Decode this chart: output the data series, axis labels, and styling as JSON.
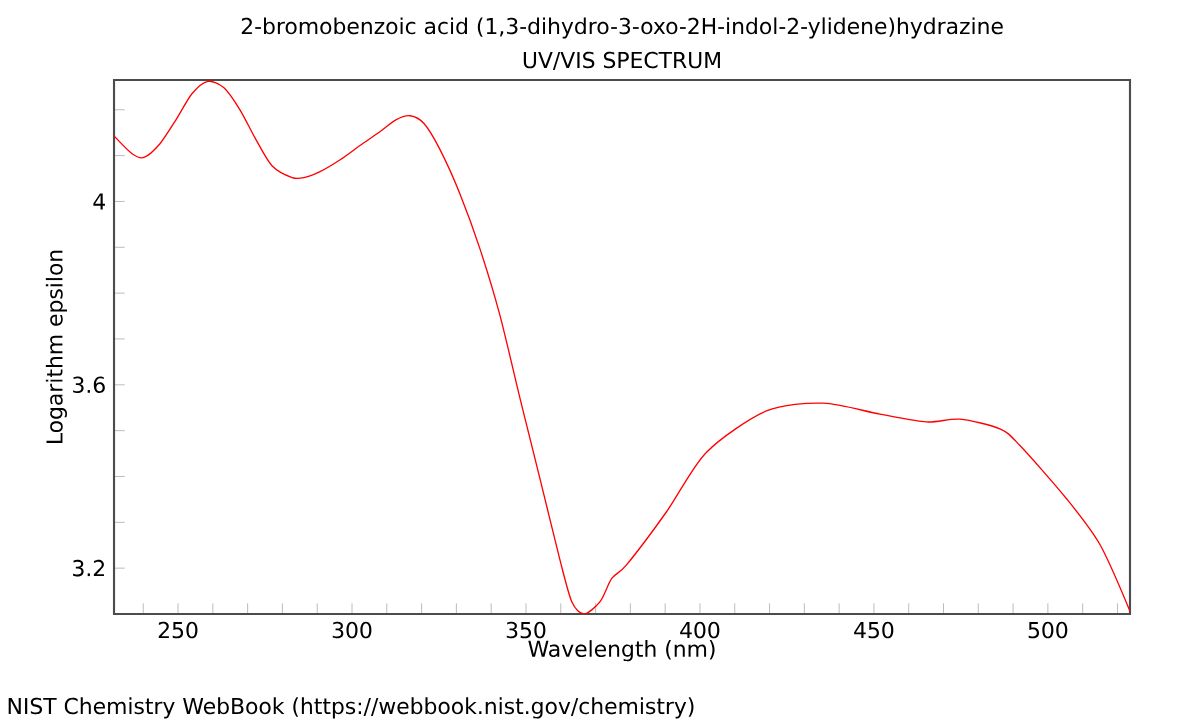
{
  "chart_data": {
    "type": "line",
    "title": "2-bromobenzoic acid (1,3-dihydro-3-oxo-2H-indol-2-ylidene)hydrazine",
    "subtitle": "UV/VIS SPECTRUM",
    "xlabel": "Wavelength (nm)",
    "ylabel": "Logarithm epsilon",
    "annotations": [
      "NIST Chemistry WebBook (https://webbook.nist.gov/chemistry)"
    ],
    "x": [
      231.6,
      236.8,
      240.2,
      244.8,
      249.4,
      254,
      258.6,
      263.2,
      267.8,
      272.4,
      277,
      282.8,
      286.2,
      290.8,
      296.6,
      302.3,
      308,
      312.6,
      316.7,
      320.7,
      325.3,
      331,
      336.8,
      342.5,
      348.3,
      354,
      359.8,
      363.2,
      366.7,
      371.3,
      374.7,
      378.9,
      390.4,
      401.9,
      419.1,
      435.5,
      451.7,
      465.1,
      474.7,
      486.2,
      491.9,
      505.3,
      515,
      523.6
    ],
    "series": [
      {
        "color": "#ff0000",
        "values": [
          4.143,
          4.104,
          4.096,
          4.126,
          4.178,
          4.235,
          4.262,
          4.248,
          4.2,
          4.135,
          4.078,
          4.052,
          4.052,
          4.065,
          4.091,
          4.122,
          4.152,
          4.178,
          4.187,
          4.17,
          4.113,
          4.017,
          3.896,
          3.752,
          3.57,
          3.396,
          3.217,
          3.126,
          3.1,
          3.127,
          3.178,
          3.207,
          3.323,
          3.453,
          3.543,
          3.56,
          3.536,
          3.519,
          3.525,
          3.504,
          3.468,
          3.352,
          3.251,
          3.106
        ]
      }
    ],
    "xlim": [
      231.6,
      523.6
    ],
    "ylim": [
      3.1,
      4.265
    ],
    "xticks": [
      {
        "value": 240,
        "label": null
      },
      250,
      {
        "value": 260,
        "label": null
      },
      {
        "value": 270,
        "label": null
      },
      {
        "value": 280,
        "label": null
      },
      {
        "value": 290,
        "label": null
      },
      300,
      {
        "value": 310,
        "label": null
      },
      {
        "value": 320,
        "label": null
      },
      {
        "value": 330,
        "label": null
      },
      {
        "value": 340,
        "label": null
      },
      350,
      {
        "value": 360,
        "label": null
      },
      {
        "value": 370,
        "label": null
      },
      {
        "value": 380,
        "label": null
      },
      {
        "value": 390,
        "label": null
      },
      400,
      {
        "value": 410,
        "label": null
      },
      {
        "value": 420,
        "label": null
      },
      {
        "value": 430,
        "label": null
      },
      {
        "value": 440,
        "label": null
      },
      450,
      {
        "value": 460,
        "label": null
      },
      {
        "value": 470,
        "label": null
      },
      {
        "value": 480,
        "label": null
      },
      {
        "value": 490,
        "label": null
      },
      500,
      {
        "value": 510,
        "label": null
      },
      {
        "value": 520,
        "label": null
      }
    ],
    "yticks": [
      3.2,
      {
        "value": 3.3,
        "label": null
      },
      {
        "value": 3.4,
        "label": null
      },
      {
        "value": 3.5,
        "label": null
      },
      3.6,
      {
        "value": 3.7,
        "label": null
      },
      {
        "value": 3.8,
        "label": null
      },
      {
        "value": 3.9,
        "label": null
      },
      4,
      {
        "value": 4.1,
        "label": null
      },
      {
        "value": 4.2,
        "label": null
      }
    ],
    "grid": false,
    "marker": "none",
    "line_style": "solid"
  }
}
